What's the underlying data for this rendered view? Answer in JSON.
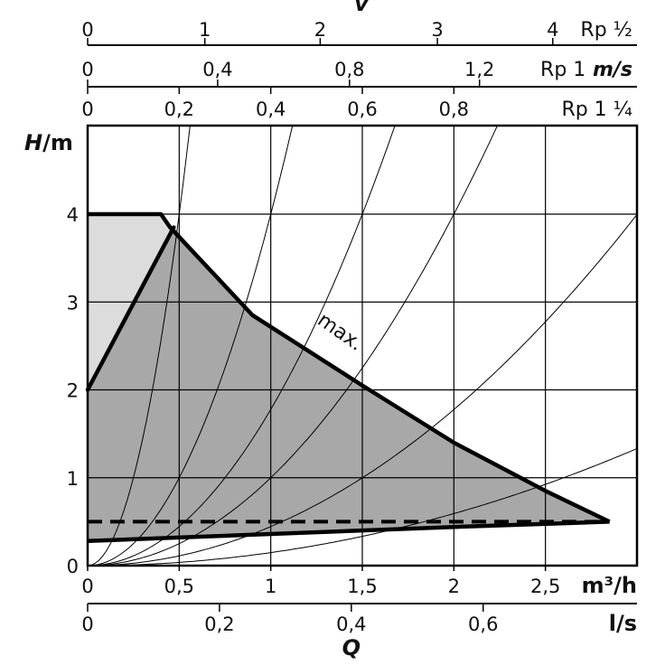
{
  "chart_data": {
    "type": "line",
    "y_axis": {
      "title_var": "H",
      "title_unit": "/m",
      "ticks": [
        "0",
        "1",
        "2",
        "3",
        "4"
      ],
      "tick_values": [
        0,
        1,
        2,
        3,
        4
      ],
      "range": [
        0,
        4.0
      ]
    },
    "x_axis_primary": {
      "unit": "m³/h",
      "ticks": [
        "0",
        "0,5",
        "1",
        "1,5",
        "2",
        "2,5"
      ],
      "tick_values": [
        0,
        0.5,
        1,
        1.5,
        2,
        2.5
      ],
      "range": [
        0,
        3.0
      ]
    },
    "x_axis_secondary": {
      "var": "Q",
      "unit": "l/s",
      "ticks": [
        "0",
        "0,2",
        "0,4",
        "0,6"
      ],
      "tick_values": [
        0,
        0.2,
        0.4,
        0.6
      ]
    },
    "top_axes": {
      "var": "v",
      "scales": [
        {
          "pipe": "Rp ½",
          "unit": "",
          "ticks": [
            "0",
            "1",
            "2",
            "3",
            "4"
          ],
          "flow_at_ticks": [
            0,
            0.64,
            1.27,
            1.91,
            2.54
          ]
        },
        {
          "pipe": "Rp 1",
          "unit": "m/s",
          "ticks": [
            "0",
            "0,4",
            "0,8",
            "1,2"
          ],
          "flow_at_ticks": [
            0,
            0.71,
            1.43,
            2.14
          ]
        },
        {
          "pipe": "Rp 1 ¼",
          "unit": "",
          "ticks": [
            "0",
            "0,2",
            "0,4",
            "0,6",
            "0,8"
          ],
          "flow_at_ticks": [
            0,
            0.5,
            1.0,
            1.5,
            2.0
          ]
        }
      ]
    },
    "series": [
      {
        "name": "max.",
        "role": "max-curve",
        "points": [
          [
            0,
            4.0
          ],
          [
            0.4,
            4.0
          ],
          [
            0.45,
            3.85
          ],
          [
            0.9,
            2.85
          ],
          [
            1.5,
            2.05
          ],
          [
            2.0,
            1.4
          ],
          [
            2.5,
            0.85
          ],
          [
            2.85,
            0.5
          ]
        ]
      },
      {
        "role": "min-curve",
        "points": [
          [
            0,
            0.28
          ],
          [
            0.5,
            0.32
          ],
          [
            1.0,
            0.36
          ],
          [
            1.5,
            0.4
          ],
          [
            2.0,
            0.44
          ],
          [
            2.85,
            0.5
          ]
        ]
      },
      {
        "role": "constant-pressure-line",
        "points": [
          [
            0,
            2.0
          ],
          [
            0.47,
            3.85
          ]
        ]
      },
      {
        "role": "dashed-line",
        "points": [
          [
            0,
            0.5
          ],
          [
            2.85,
            0.5
          ]
        ]
      }
    ],
    "system_curves_k": [
      16,
      4,
      1.778,
      1,
      0.444,
      0.148
    ],
    "region_colors": {
      "operating_range": "#a8a8a8",
      "constant_pressure_zone": "#dcdcdc",
      "lines": "#000000"
    },
    "grid": true
  }
}
